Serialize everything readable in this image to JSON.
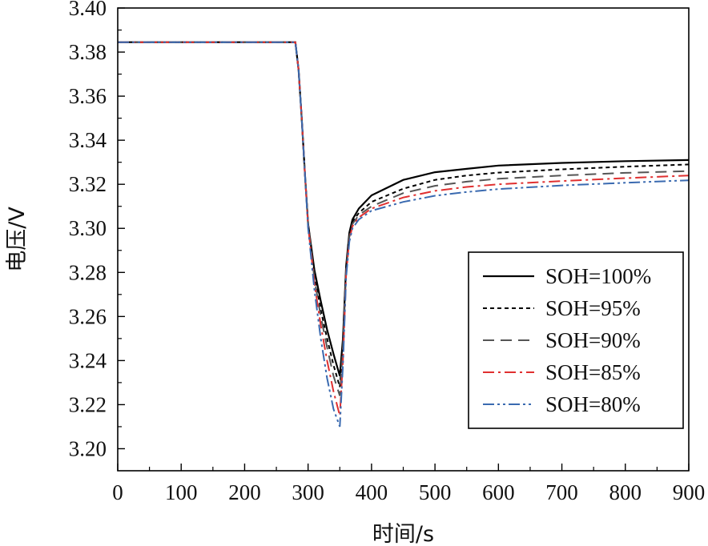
{
  "chart_data": {
    "type": "line",
    "title": "",
    "xlabel": "时间/s",
    "ylabel": "电压/V",
    "xlim": [
      0,
      900
    ],
    "ylim": [
      3.19,
      3.4
    ],
    "xticks": [
      "0",
      "100",
      "200",
      "300",
      "400",
      "500",
      "600",
      "700",
      "800",
      "900"
    ],
    "yticks": [
      "3.20",
      "3.22",
      "3.24",
      "3.26",
      "3.28",
      "3.30",
      "3.32",
      "3.34",
      "3.36",
      "3.38",
      "3.40"
    ],
    "grid": false,
    "legend_position": "bottom-right",
    "series": [
      {
        "name": "SOH=100%",
        "color": "#000000",
        "dash": "solid",
        "points": [
          [
            0,
            3.3845
          ],
          [
            280,
            3.3845
          ],
          [
            285,
            3.372
          ],
          [
            290,
            3.35
          ],
          [
            295,
            3.325
          ],
          [
            300,
            3.302
          ],
          [
            310,
            3.281
          ],
          [
            320,
            3.267
          ],
          [
            330,
            3.254
          ],
          [
            340,
            3.243
          ],
          [
            350,
            3.233
          ],
          [
            355,
            3.25
          ],
          [
            360,
            3.283
          ],
          [
            365,
            3.298
          ],
          [
            370,
            3.304
          ],
          [
            380,
            3.309
          ],
          [
            400,
            3.315
          ],
          [
            450,
            3.322
          ],
          [
            500,
            3.3255
          ],
          [
            550,
            3.327
          ],
          [
            600,
            3.3285
          ],
          [
            700,
            3.3297
          ],
          [
            800,
            3.3305
          ],
          [
            900,
            3.331
          ]
        ]
      },
      {
        "name": "SOH=95%",
        "color": "#000000",
        "dash": "dotted",
        "points": [
          [
            0,
            3.3845
          ],
          [
            280,
            3.3845
          ],
          [
            285,
            3.372
          ],
          [
            290,
            3.35
          ],
          [
            295,
            3.325
          ],
          [
            300,
            3.302
          ],
          [
            310,
            3.279
          ],
          [
            320,
            3.263
          ],
          [
            330,
            3.25
          ],
          [
            340,
            3.238
          ],
          [
            350,
            3.228
          ],
          [
            355,
            3.248
          ],
          [
            360,
            3.282
          ],
          [
            365,
            3.297
          ],
          [
            370,
            3.303
          ],
          [
            380,
            3.307
          ],
          [
            400,
            3.312
          ],
          [
            450,
            3.318
          ],
          [
            500,
            3.322
          ],
          [
            550,
            3.324
          ],
          [
            600,
            3.3253
          ],
          [
            700,
            3.3268
          ],
          [
            800,
            3.328
          ],
          [
            900,
            3.329
          ]
        ]
      },
      {
        "name": "SOH=90%",
        "color": "#555555",
        "dash": "dashed",
        "points": [
          [
            0,
            3.3845
          ],
          [
            280,
            3.3845
          ],
          [
            285,
            3.372
          ],
          [
            290,
            3.35
          ],
          [
            295,
            3.325
          ],
          [
            300,
            3.302
          ],
          [
            310,
            3.277
          ],
          [
            320,
            3.26
          ],
          [
            330,
            3.246
          ],
          [
            340,
            3.233
          ],
          [
            350,
            3.224
          ],
          [
            355,
            3.246
          ],
          [
            360,
            3.281
          ],
          [
            365,
            3.296
          ],
          [
            370,
            3.302
          ],
          [
            380,
            3.306
          ],
          [
            400,
            3.31
          ],
          [
            450,
            3.316
          ],
          [
            500,
            3.3193
          ],
          [
            550,
            3.3212
          ],
          [
            600,
            3.3225
          ],
          [
            700,
            3.324
          ],
          [
            800,
            3.3252
          ],
          [
            900,
            3.326
          ]
        ]
      },
      {
        "name": "SOH=85%",
        "color": "#e03030",
        "dash": "dashdot",
        "points": [
          [
            0,
            3.3845
          ],
          [
            280,
            3.3845
          ],
          [
            285,
            3.372
          ],
          [
            290,
            3.35
          ],
          [
            295,
            3.325
          ],
          [
            300,
            3.301
          ],
          [
            310,
            3.275
          ],
          [
            320,
            3.256
          ],
          [
            330,
            3.24
          ],
          [
            340,
            3.226
          ],
          [
            350,
            3.215
          ],
          [
            355,
            3.24
          ],
          [
            360,
            3.279
          ],
          [
            365,
            3.295
          ],
          [
            370,
            3.301
          ],
          [
            380,
            3.305
          ],
          [
            400,
            3.309
          ],
          [
            450,
            3.314
          ],
          [
            500,
            3.317
          ],
          [
            550,
            3.3188
          ],
          [
            600,
            3.32
          ],
          [
            700,
            3.3215
          ],
          [
            800,
            3.3228
          ],
          [
            900,
            3.324
          ]
        ]
      },
      {
        "name": "SOH=80%",
        "color": "#3a6ab0",
        "dash": "dashdotdot",
        "points": [
          [
            0,
            3.3845
          ],
          [
            280,
            3.3845
          ],
          [
            285,
            3.372
          ],
          [
            290,
            3.35
          ],
          [
            295,
            3.325
          ],
          [
            300,
            3.3
          ],
          [
            310,
            3.272
          ],
          [
            320,
            3.25
          ],
          [
            330,
            3.232
          ],
          [
            340,
            3.218
          ],
          [
            350,
            3.21
          ],
          [
            355,
            3.238
          ],
          [
            360,
            3.278
          ],
          [
            365,
            3.294
          ],
          [
            370,
            3.3
          ],
          [
            380,
            3.304
          ],
          [
            400,
            3.308
          ],
          [
            450,
            3.312
          ],
          [
            500,
            3.3148
          ],
          [
            550,
            3.3165
          ],
          [
            600,
            3.3178
          ],
          [
            700,
            3.3195
          ],
          [
            800,
            3.3207
          ],
          [
            900,
            3.3218
          ]
        ]
      }
    ]
  }
}
